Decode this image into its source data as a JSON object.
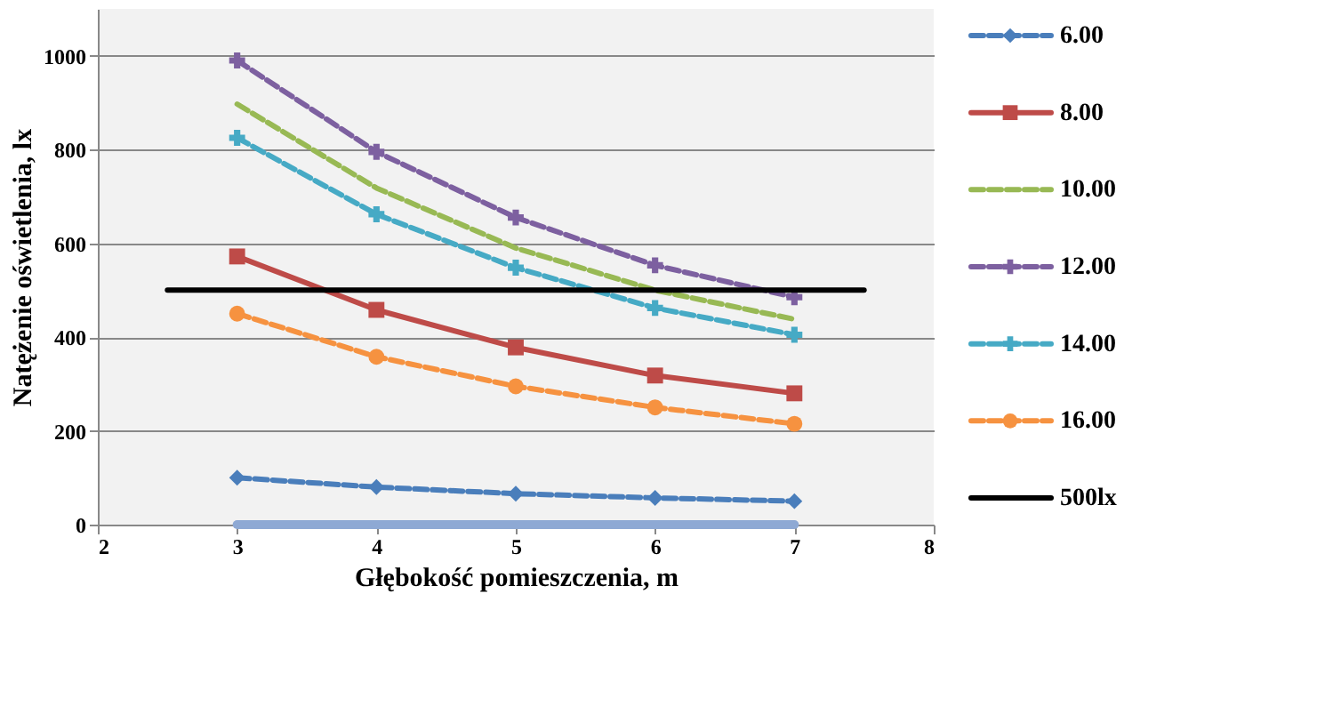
{
  "chart_data": {
    "type": "line",
    "xlabel": "Głębokość pomieszczenia,  m",
    "ylabel": "Natężenie oświetlenia,  lx",
    "x": [
      3,
      4,
      5,
      6,
      7
    ],
    "xlim": [
      2,
      8
    ],
    "xticks": [
      2,
      3,
      4,
      5,
      6,
      7,
      8
    ],
    "ylim": [
      0,
      1100
    ],
    "yticks": [
      0,
      200,
      400,
      600,
      800,
      1000
    ],
    "grid": "y",
    "legend": "right",
    "series": [
      {
        "name": "6.00",
        "color": "#4a7ebb",
        "values": [
          100,
          80,
          66,
          57,
          50
        ],
        "marker": "diamond",
        "line_style": "dashed"
      },
      {
        "name": "8.00",
        "color": "#be4b48",
        "values": [
          572,
          458,
          378,
          318,
          280
        ],
        "marker": "square",
        "line_style": "solid"
      },
      {
        "name": "10.00",
        "color": "#98b954",
        "values": [
          897,
          718,
          590,
          500,
          438
        ],
        "marker": "none",
        "line_style": "dashed"
      },
      {
        "name": "12.00",
        "color": "#7d60a0",
        "values": [
          990,
          795,
          655,
          553,
          485
        ],
        "marker": "cross",
        "line_style": "dashed"
      },
      {
        "name": "14.00",
        "color": "#46aac5",
        "values": [
          825,
          662,
          548,
          462,
          405
        ],
        "marker": "cross",
        "line_style": "dashed"
      },
      {
        "name": "16.00",
        "color": "#f69240",
        "values": [
          450,
          358,
          295,
          250,
          215
        ],
        "marker": "circle",
        "line_style": "dashed"
      },
      {
        "name": "500lx",
        "color": "#000000",
        "x": [
          2.5,
          7.5
        ],
        "values": [
          500,
          500
        ],
        "marker": "none",
        "line_style": "solid"
      },
      {
        "color": "#8ea9d4",
        "values": [
          0,
          0,
          0,
          0,
          0
        ],
        "marker": "none",
        "line_style": "solid"
      }
    ]
  }
}
